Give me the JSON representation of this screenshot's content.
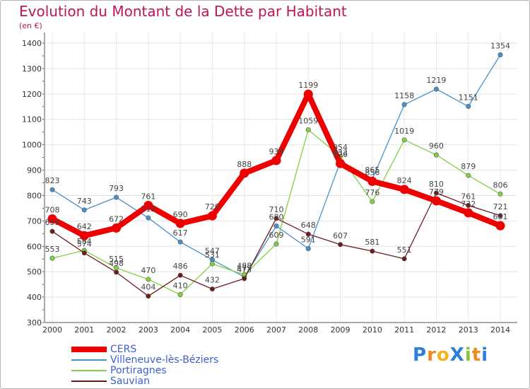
{
  "chart_data": {
    "type": "line",
    "title": "Evolution du Montant de la Dette par Habitant",
    "subtitle": "(en €)",
    "x": [
      "2000",
      "2001",
      "2002",
      "2003",
      "2004",
      "2005",
      "2006",
      "2007",
      "2008",
      "2009",
      "2010",
      "2011",
      "2012",
      "2013",
      "2014"
    ],
    "ylim": [
      300,
      1400
    ],
    "yticks": [
      300,
      400,
      500,
      600,
      700,
      800,
      900,
      1000,
      1100,
      1200,
      1300,
      1400
    ],
    "grid": true,
    "legend_position": "bottom-left",
    "series": [
      {
        "name": "CERS",
        "color": "#ee0000",
        "values": [
          708,
          642,
          672,
          761,
          690,
          720,
          888,
          938,
          1199,
          926,
          856,
          824,
          779,
          732,
          681
        ]
      },
      {
        "name": "Villeneuve-lès-Béziers",
        "color": "#4a90c8",
        "values": [
          823,
          743,
          793,
          712,
          617,
          547,
          479,
          680,
          591,
          933,
          865,
          1158,
          1219,
          1151,
          1354
        ]
      },
      {
        "name": "Portiragnes",
        "color": "#82d144",
        "values": [
          553,
          584,
          515,
          470,
          410,
          531,
          488,
          609,
          1059,
          954,
          776,
          1019,
          960,
          879,
          806
        ]
      },
      {
        "name": "Sauvian",
        "color": "#6e1a1f",
        "values": [
          659,
          574,
          498,
          404,
          486,
          432,
          473,
          710,
          648,
          607,
          581,
          551,
          810,
          761,
          721
        ]
      }
    ]
  },
  "logo": {
    "text": "ProXiti",
    "letters": [
      "P",
      "r",
      "o",
      "X",
      "i",
      "t",
      "i"
    ],
    "colors": [
      "#2b7fd9",
      "#f08a1c",
      "#f2b31d",
      "#2b7fd9",
      "#8fc23c",
      "#f08a1c",
      "#2b7fd9"
    ]
  }
}
